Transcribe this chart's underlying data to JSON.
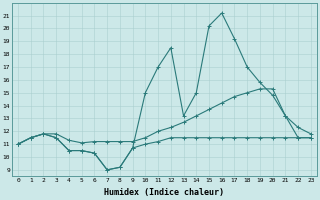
{
  "x": [
    0,
    1,
    2,
    3,
    4,
    5,
    6,
    7,
    8,
    9,
    10,
    11,
    12,
    13,
    14,
    15,
    16,
    17,
    18,
    19,
    20,
    21,
    22,
    23
  ],
  "line_peak": [
    11,
    11.5,
    11.8,
    11.5,
    10.5,
    10.5,
    10.3,
    9.0,
    9.2,
    10.7,
    15.0,
    17.0,
    18.5,
    13.2,
    15.0,
    20.2,
    21.2,
    19.2,
    17.0,
    15.8,
    14.8,
    13.2,
    12.3,
    11.8
  ],
  "line_upper": [
    11,
    11.5,
    11.8,
    11.8,
    11.3,
    11.1,
    11.2,
    11.2,
    11.2,
    11.2,
    11.5,
    12.0,
    12.3,
    12.7,
    13.2,
    13.7,
    14.2,
    14.7,
    15.0,
    15.3,
    15.3,
    13.2,
    11.5,
    11.5
  ],
  "line_flat": [
    11,
    11.5,
    11.8,
    11.5,
    10.5,
    10.5,
    10.3,
    9.0,
    9.2,
    10.7,
    11.0,
    11.2,
    11.5,
    11.5,
    11.5,
    11.5,
    11.5,
    11.5,
    11.5,
    11.5,
    11.5,
    11.5,
    11.5,
    11.5
  ],
  "line_color": "#2a7a7a",
  "bg_color": "#cce8e8",
  "grid_color": "#aacfcf",
  "xlabel": "Humidex (Indice chaleur)",
  "ylabel_ticks": [
    9,
    10,
    11,
    12,
    13,
    14,
    15,
    16,
    17,
    18,
    19,
    20,
    21
  ],
  "ylim": [
    8.5,
    22
  ],
  "xlim": [
    -0.5,
    23.5
  ]
}
